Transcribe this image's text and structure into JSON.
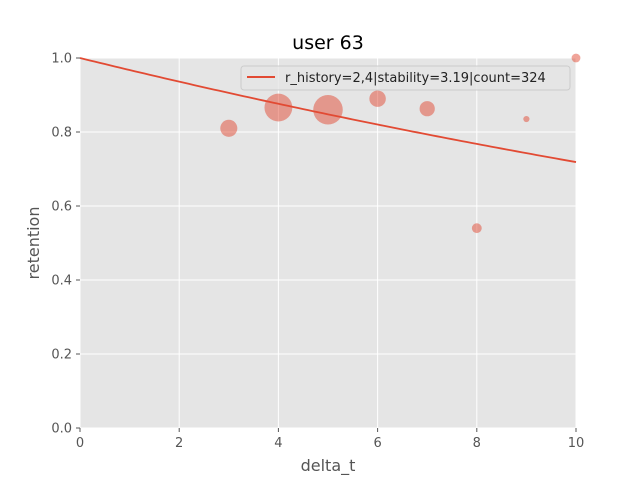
{
  "chart_data": {
    "type": "scatter",
    "title": "user 63",
    "xlabel": "delta_t",
    "ylabel": "retention",
    "xlim": [
      0,
      10
    ],
    "ylim": [
      0,
      1
    ],
    "xticks": [
      0,
      2,
      4,
      6,
      8,
      10
    ],
    "yticks": [
      0.0,
      0.2,
      0.4,
      0.6,
      0.8,
      1.0
    ],
    "xtick_labels": [
      "0",
      "2",
      "4",
      "6",
      "8",
      "10"
    ],
    "ytick_labels": [
      "0.0",
      "0.2",
      "0.4",
      "0.6",
      "0.8",
      "1.0"
    ],
    "grid": true,
    "legend_position": "top-right",
    "style": "ggplot",
    "colors": {
      "background": "#e5e5e5",
      "grid": "#ffffff",
      "series": "#e24a33"
    },
    "points": [
      {
        "x": 3,
        "y": 0.81,
        "size": 15
      },
      {
        "x": 4,
        "y": 0.866,
        "size": 40
      },
      {
        "x": 5,
        "y": 0.86,
        "size": 45
      },
      {
        "x": 6,
        "y": 0.89,
        "size": 14
      },
      {
        "x": 7,
        "y": 0.863,
        "size": 12
      },
      {
        "x": 8,
        "y": 0.54,
        "size": 5
      },
      {
        "x": 9,
        "y": 0.835,
        "size": 2
      },
      {
        "x": 10,
        "y": 1.0,
        "size": 4
      }
    ],
    "curve": {
      "label": "r_history=2,4|stability=3.19|count=324",
      "stability": 3.19,
      "x_range": [
        0,
        10
      ]
    }
  }
}
